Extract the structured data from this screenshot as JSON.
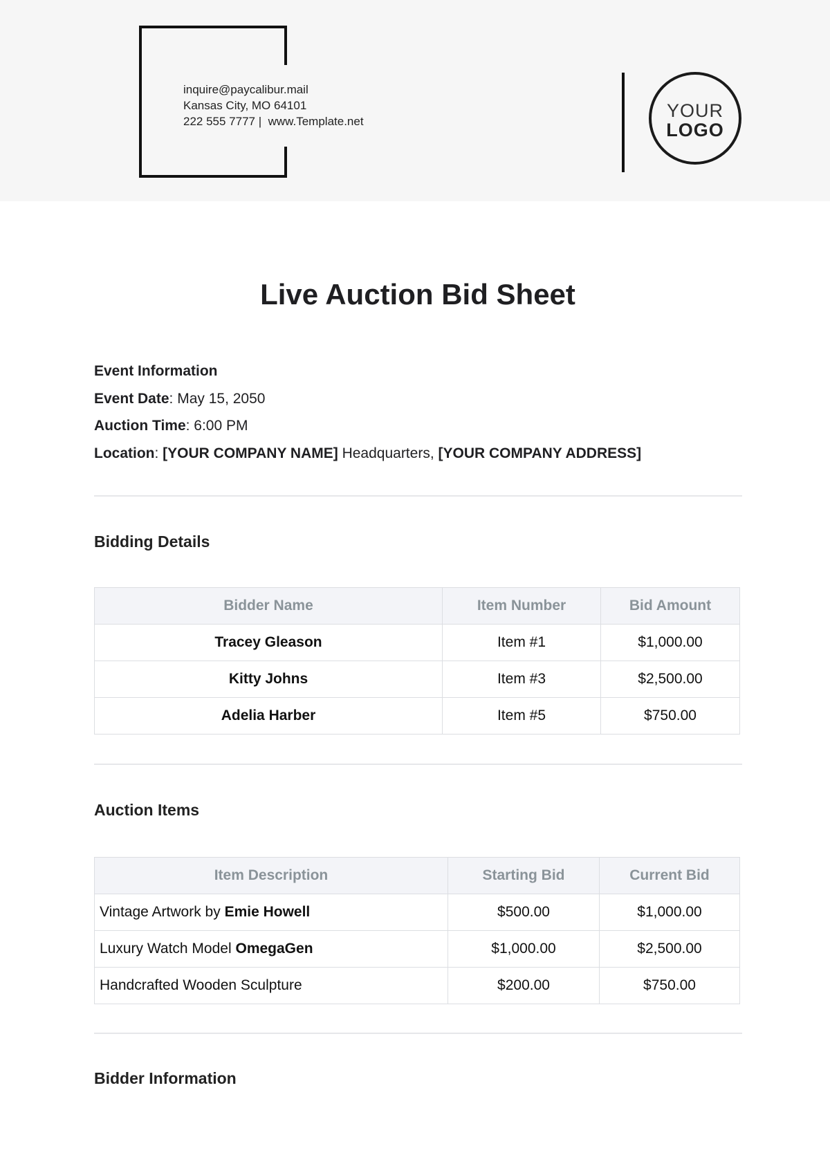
{
  "header": {
    "email": "inquire@paycalibur.mail",
    "address": "Kansas City, MO 64101",
    "phone": "222 555 7777",
    "separator": "|",
    "website": "www.Template.net",
    "logo_line1": "YOUR",
    "logo_line2": "LOGO"
  },
  "title": "Live Auction Bid Sheet",
  "event": {
    "heading": "Event Information",
    "date_label": "Event Date",
    "date_value": "May 15, 2050",
    "time_label": "Auction Time",
    "time_value": "6:00 PM",
    "location_label": "Location",
    "location_company": "[YOUR COMPANY NAME]",
    "location_mid": "Headquarters,",
    "location_address": "[YOUR COMPANY ADDRESS]"
  },
  "bidding": {
    "heading": "Bidding Details",
    "columns": [
      "Bidder Name",
      "Item Number",
      "Bid Amount"
    ],
    "rows": [
      [
        "Tracey Gleason",
        "Item #1",
        "$1,000.00"
      ],
      [
        "Kitty Johns",
        "Item #3",
        "$2,500.00"
      ],
      [
        "Adelia Harber",
        "Item #5",
        "$750.00"
      ]
    ]
  },
  "items": {
    "heading": "Auction Items",
    "columns": [
      "Item Description",
      "Starting Bid",
      "Current Bid"
    ],
    "rows": [
      {
        "desc": "Vintage Artwork by",
        "bold": "Emie Howell",
        "start": "$500.00",
        "current": "$1,000.00"
      },
      {
        "desc": "Luxury Watch Model",
        "bold": "OmegaGen",
        "start": "$1,000.00",
        "current": "$2,500.00"
      },
      {
        "desc": "Handcrafted Wooden Sculpture",
        "bold": "",
        "start": "$200.00",
        "current": "$750.00"
      }
    ]
  },
  "bidder_info": {
    "heading": "Bidder Information"
  }
}
